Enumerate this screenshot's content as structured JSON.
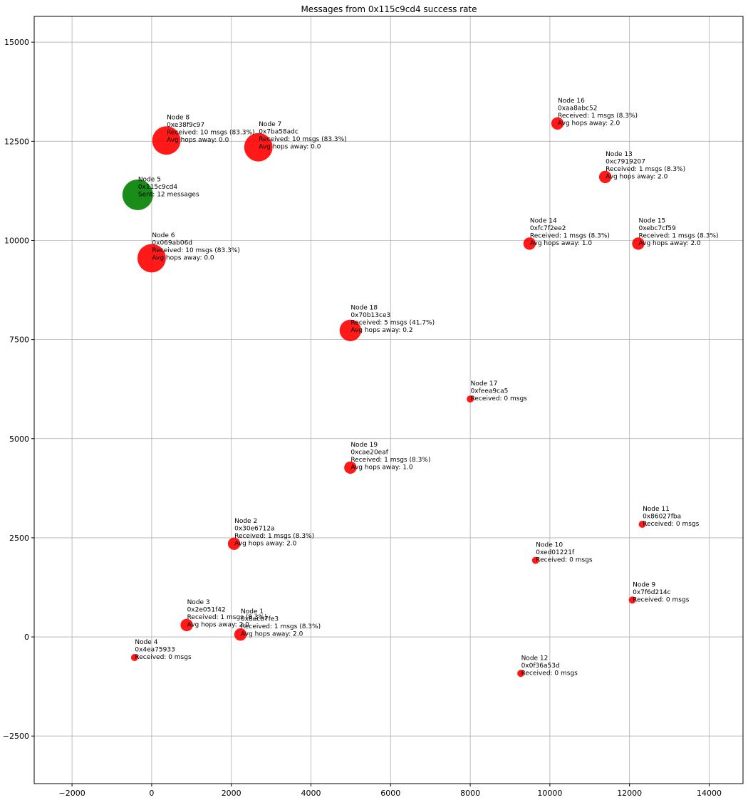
{
  "chart_data": {
    "type": "scatter",
    "title": "Messages from 0x115c9cd4 success rate",
    "xlabel": "",
    "ylabel": "",
    "xlim": [
      -2950,
      14850
    ],
    "ylim": [
      -3700,
      15650
    ],
    "x_ticks": [
      -2000,
      0,
      2000,
      4000,
      6000,
      8000,
      10000,
      12000,
      14000
    ],
    "x_tick_labels": [
      "−2000",
      "0",
      "2000",
      "4000",
      "6000",
      "8000",
      "10000",
      "12000",
      "14000"
    ],
    "y_ticks": [
      -2500,
      0,
      2500,
      5000,
      7500,
      10000,
      12500,
      15000
    ],
    "y_tick_labels": [
      "−2500",
      "0",
      "2500",
      "5000",
      "7500",
      "10000",
      "12500",
      "15000"
    ],
    "grid": true,
    "colors": {
      "source": "#008000",
      "receiver": "#ff0000",
      "grid": "#b0b0b0"
    },
    "points": [
      {
        "node": "Node 1",
        "x": 2230,
        "y": 60,
        "size": 1,
        "role": "receiver",
        "labels": [
          "Node 1",
          "0x8acb7fe3",
          "Received: 1 msgs (8.3%)",
          "Avg hops away: 2.0"
        ]
      },
      {
        "node": "Node 2",
        "x": 2070,
        "y": 2350,
        "size": 1,
        "role": "receiver",
        "labels": [
          "Node 2",
          "0x30e6712a",
          "Received: 1 msgs (8.3%)",
          "Avg hops away: 2.0"
        ]
      },
      {
        "node": "Node 3",
        "x": 880,
        "y": 300,
        "size": 1,
        "role": "receiver",
        "labels": [
          "Node 3",
          "0x2e051f42",
          "Received: 1 msgs (8.3%)",
          "Avg hops away: 2.0"
        ]
      },
      {
        "node": "Node 4",
        "x": -430,
        "y": -520,
        "size": 0,
        "role": "receiver",
        "labels": [
          "Node 4",
          "0x4ea75933",
          "Received: 0 msgs"
        ]
      },
      {
        "node": "Node 5",
        "x": -350,
        "y": 11150,
        "size": 12,
        "role": "source",
        "labels": [
          "Node 5",
          "0x115c9cd4",
          "Sent: 12 messages"
        ]
      },
      {
        "node": "Node 6",
        "x": 0,
        "y": 9550,
        "size": 10,
        "role": "receiver",
        "labels": [
          "Node 6",
          "0x069ab06d",
          "Received: 10 msgs (83.3%)",
          "Avg hops away: 0.0"
        ]
      },
      {
        "node": "Node 7",
        "x": 2680,
        "y": 12350,
        "size": 10,
        "role": "receiver",
        "labels": [
          "Node 7",
          "0x7ba58adc",
          "Received: 10 msgs (83.3%)",
          "Avg hops away: 0.0"
        ]
      },
      {
        "node": "Node 8",
        "x": 370,
        "y": 12520,
        "size": 10,
        "role": "receiver",
        "labels": [
          "Node 8",
          "0xe38f9c97",
          "Received: 10 msgs (83.3%)",
          "Avg hops away: 0.0"
        ]
      },
      {
        "node": "Node 9",
        "x": 12070,
        "y": 930,
        "size": 0,
        "role": "receiver",
        "labels": [
          "Node 9",
          "0x7f6d214c",
          "Received: 0 msgs"
        ]
      },
      {
        "node": "Node 10",
        "x": 9640,
        "y": 1930,
        "size": 0,
        "role": "receiver",
        "labels": [
          "Node 10",
          "0xed01221f",
          "Received: 0 msgs"
        ]
      },
      {
        "node": "Node 11",
        "x": 12320,
        "y": 2840,
        "size": 0,
        "role": "receiver",
        "labels": [
          "Node 11",
          "0x86027fba",
          "Received: 0 msgs"
        ]
      },
      {
        "node": "Node 12",
        "x": 9270,
        "y": -920,
        "size": 0,
        "role": "receiver",
        "labels": [
          "Node 12",
          "0x0f36a53d",
          "Received: 0 msgs"
        ]
      },
      {
        "node": "Node 13",
        "x": 11390,
        "y": 11600,
        "size": 1,
        "role": "receiver",
        "labels": [
          "Node 13",
          "0xc7919207",
          "Received: 1 msgs (8.3%)",
          "Avg hops away: 2.0"
        ]
      },
      {
        "node": "Node 14",
        "x": 9490,
        "y": 9920,
        "size": 1,
        "role": "receiver",
        "labels": [
          "Node 14",
          "0xfc7f2ee2",
          "Received: 1 msgs (8.3%)",
          "Avg hops away: 1.0"
        ]
      },
      {
        "node": "Node 15",
        "x": 12220,
        "y": 9920,
        "size": 1,
        "role": "receiver",
        "labels": [
          "Node 15",
          "0xebc7cf59",
          "Received: 1 msgs (8.3%)",
          "Avg hops away: 2.0"
        ]
      },
      {
        "node": "Node 16",
        "x": 10190,
        "y": 12950,
        "size": 1,
        "role": "receiver",
        "labels": [
          "Node 16",
          "0xaa8abc52",
          "Received: 1 msgs (8.3%)",
          "Avg hops away: 2.0"
        ]
      },
      {
        "node": "Node 17",
        "x": 8000,
        "y": 6000,
        "size": 0,
        "role": "receiver",
        "labels": [
          "Node 17",
          "0xfeea9ca5",
          "Received: 0 msgs"
        ]
      },
      {
        "node": "Node 18",
        "x": 4990,
        "y": 7730,
        "size": 5,
        "role": "receiver",
        "labels": [
          "Node 18",
          "0x70b13ce3",
          "Received: 5 msgs (41.7%)",
          "Avg hops away: 0.2"
        ]
      },
      {
        "node": "Node 19",
        "x": 4990,
        "y": 4270,
        "size": 1,
        "role": "receiver",
        "labels": [
          "Node 19",
          "0xcae20eaf",
          "Received: 1 msgs (8.3%)",
          "Avg hops away: 1.0"
        ]
      }
    ]
  }
}
